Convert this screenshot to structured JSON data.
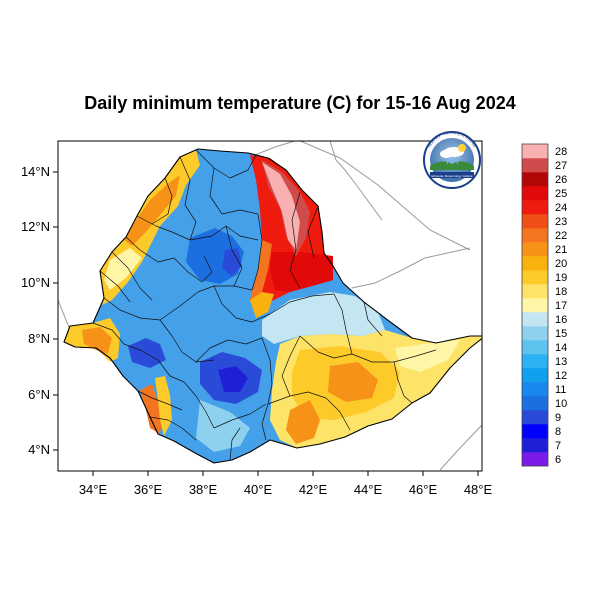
{
  "title": "Daily minimum temperature (C) for 15-16 Aug 2024",
  "logo": {
    "top_text": "የኢትዮጵያ ሜቴዎሮሎጂ ኢንስቲትዩት",
    "bottom_text": "Ethiopian Meteorology Institute"
  },
  "map": {
    "region": "Ethiopia",
    "x_ticks": [
      "34°E",
      "36°E",
      "38°E",
      "40°E",
      "42°E",
      "44°E",
      "46°E",
      "48°E"
    ],
    "y_ticks": [
      "14°N",
      "12°N",
      "10°N",
      "8°N",
      "6°N",
      "4°N"
    ],
    "lon_range": [
      32.8,
      48.2
    ],
    "lat_range": [
      3.2,
      15.0
    ]
  },
  "colorbar": {
    "colors": [
      "#7a1bea",
      "#1f1fd8",
      "#0000ff",
      "#2a4bd8",
      "#1c6fe0",
      "#1a86f0",
      "#10a0ee",
      "#2ab2f4",
      "#5dc3ef",
      "#8ed1ef",
      "#c4e5f2",
      "#fff6a8",
      "#fde468",
      "#fccb2a",
      "#f9b20d",
      "#f69218",
      "#f3751f",
      "#f04f16",
      "#ee1b0e",
      "#e10a08",
      "#b30707",
      "#d04b4b",
      "#f8b0b0"
    ],
    "labels": [
      "6",
      "7",
      "8",
      "9",
      "10",
      "11",
      "12",
      "13",
      "14",
      "15",
      "16",
      "17",
      "18",
      "19",
      "20",
      "21",
      "22",
      "23",
      "24",
      "25",
      "26",
      "27",
      "28"
    ]
  }
}
